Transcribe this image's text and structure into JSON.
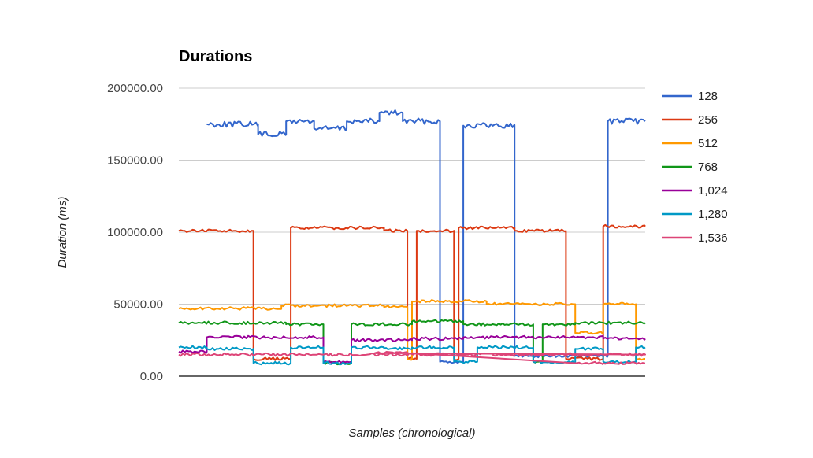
{
  "chart_data": {
    "type": "line",
    "title": "Durations",
    "xlabel": "Samples (chronological)",
    "ylabel": "Duration (ms)",
    "ylim": [
      0,
      200000
    ],
    "yticks": [
      "0.00",
      "50000.00",
      "100000.00",
      "150000.00",
      "200000.00"
    ],
    "grid": true,
    "legend_position": "right",
    "x_range": [
      0,
      100
    ],
    "series": [
      {
        "name": "128",
        "color": "#3366cc",
        "segments": [
          [
            0,
            5,
            null
          ],
          [
            6,
            17,
            175000
          ],
          [
            17,
            23,
            168000
          ],
          [
            23,
            29,
            177000
          ],
          [
            29,
            36,
            172000
          ],
          [
            36,
            43,
            177000
          ],
          [
            43,
            48,
            183000
          ],
          [
            48,
            56,
            177000
          ],
          [
            56,
            61,
            10000
          ],
          [
            61,
            72,
            174000
          ],
          [
            72,
            92,
            14000
          ],
          [
            92,
            101,
            177000
          ]
        ]
      },
      {
        "name": "256",
        "color": "#dc3912",
        "segments": [
          [
            0,
            16,
            101000
          ],
          [
            16,
            24,
            12000
          ],
          [
            24,
            44,
            103000
          ],
          [
            44,
            49,
            101000
          ],
          [
            49,
            51,
            12000
          ],
          [
            51,
            59,
            101000
          ],
          [
            59,
            60,
            12000
          ],
          [
            60,
            72,
            103000
          ],
          [
            72,
            83,
            101000
          ],
          [
            83,
            91,
            12000
          ],
          [
            91,
            101,
            104000
          ]
        ]
      },
      {
        "name": "512",
        "color": "#ff9900",
        "segments": [
          [
            0,
            22,
            47000
          ],
          [
            22,
            44,
            49000
          ],
          [
            44,
            49,
            48000
          ],
          [
            49,
            50,
            12000
          ],
          [
            50,
            66,
            52000
          ],
          [
            66,
            85,
            50000
          ],
          [
            85,
            91,
            30000
          ],
          [
            91,
            98,
            50000
          ],
          [
            98,
            101,
            12000
          ]
        ]
      },
      {
        "name": "768",
        "color": "#109618",
        "segments": [
          [
            0,
            23,
            37000
          ],
          [
            23,
            31,
            36000
          ],
          [
            31,
            37,
            9000
          ],
          [
            37,
            50,
            36000
          ],
          [
            50,
            61,
            38000
          ],
          [
            61,
            76,
            36000
          ],
          [
            76,
            78,
            10000
          ],
          [
            78,
            85,
            36000
          ],
          [
            85,
            101,
            37000
          ]
        ]
      },
      {
        "name": "1,024",
        "color": "#990099",
        "segments": [
          [
            0,
            6,
            17000
          ],
          [
            6,
            31,
            27000
          ],
          [
            31,
            37,
            10000
          ],
          [
            37,
            50,
            25000
          ],
          [
            50,
            61,
            26000
          ],
          [
            61,
            91,
            27000
          ],
          [
            91,
            101,
            26000
          ]
        ]
      },
      {
        "name": "1,280",
        "color": "#0099c6",
        "segments": [
          [
            0,
            6,
            20000
          ],
          [
            6,
            16,
            19000
          ],
          [
            16,
            24,
            9000
          ],
          [
            24,
            31,
            20000
          ],
          [
            31,
            37,
            9000
          ],
          [
            37,
            44,
            20000
          ],
          [
            44,
            50,
            19000
          ],
          [
            50,
            59,
            20000
          ],
          [
            59,
            64,
            10000
          ],
          [
            64,
            76,
            20000
          ],
          [
            76,
            85,
            10000
          ],
          [
            85,
            91,
            19000
          ],
          [
            91,
            98,
            10000
          ],
          [
            98,
            101,
            20000
          ]
        ]
      },
      {
        "name": "1,536",
        "color": "#dd4477",
        "segments": [
          [
            0,
            101,
            15000
          ],
          [
            42,
            50,
            16000
          ],
          [
            85,
            91,
            9000
          ],
          [
            91,
            101,
            9000
          ]
        ]
      }
    ]
  }
}
